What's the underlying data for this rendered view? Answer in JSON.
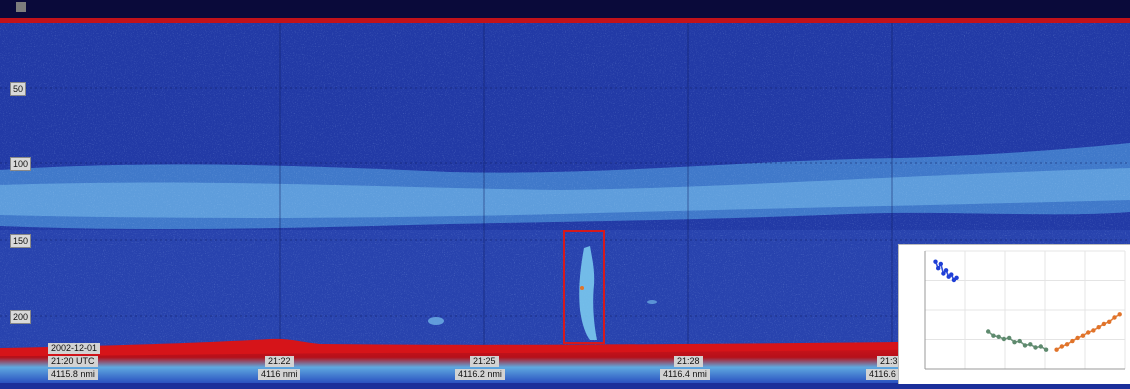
{
  "echogram": {
    "depth_labels": [
      "50",
      "100",
      "150",
      "200"
    ],
    "date": "2002-12-01",
    "time_utc": "21:20 UTC",
    "start_distance": "4115.8 nmi",
    "time_ticks": [
      {
        "time": "21:22",
        "distance": "4116 nmi"
      },
      {
        "time": "21:25",
        "distance": "4116.2 nmi"
      },
      {
        "time": "21:28",
        "distance": "4116.4 nmi"
      },
      {
        "time": "21:3",
        "distance": "4116.6"
      }
    ],
    "colors": {
      "water": "#223aa6",
      "scattering_layer": "#5aa7df",
      "seabed": "#c2121a",
      "selection_box": "#d4191d"
    },
    "selection_box": "red rectangle around a vertical echo trace"
  },
  "inset_chart": {
    "chart_data": {
      "type": "scatter",
      "series": [
        {
          "color": "#1f3fd6",
          "x": [
            0,
            0.5,
            1,
            1.5,
            2,
            2.5,
            3,
            3.5,
            4
          ],
          "y": [
            11.0,
            10.4,
            10.8,
            9.9,
            10.2,
            9.6,
            9.8,
            9.3,
            9.5
          ]
        },
        {
          "color": "#5e8a6e",
          "x": [
            10,
            11,
            12,
            13,
            14,
            15,
            16,
            17,
            18,
            19,
            20,
            21
          ],
          "y": [
            4.5,
            4.1,
            4.0,
            3.8,
            3.9,
            3.5,
            3.6,
            3.2,
            3.3,
            3.0,
            3.1,
            2.8
          ]
        },
        {
          "color": "#e0732a",
          "x": [
            23,
            24,
            25,
            26,
            27,
            28,
            29,
            30,
            31,
            32,
            33,
            34,
            35
          ],
          "y": [
            2.8,
            3.1,
            3.3,
            3.6,
            3.9,
            4.1,
            4.4,
            4.6,
            4.9,
            5.2,
            5.4,
            5.8,
            6.1
          ]
        }
      ],
      "xlim": [
        -2,
        36
      ],
      "ylim": [
        1,
        12
      ],
      "grid": true
    }
  }
}
